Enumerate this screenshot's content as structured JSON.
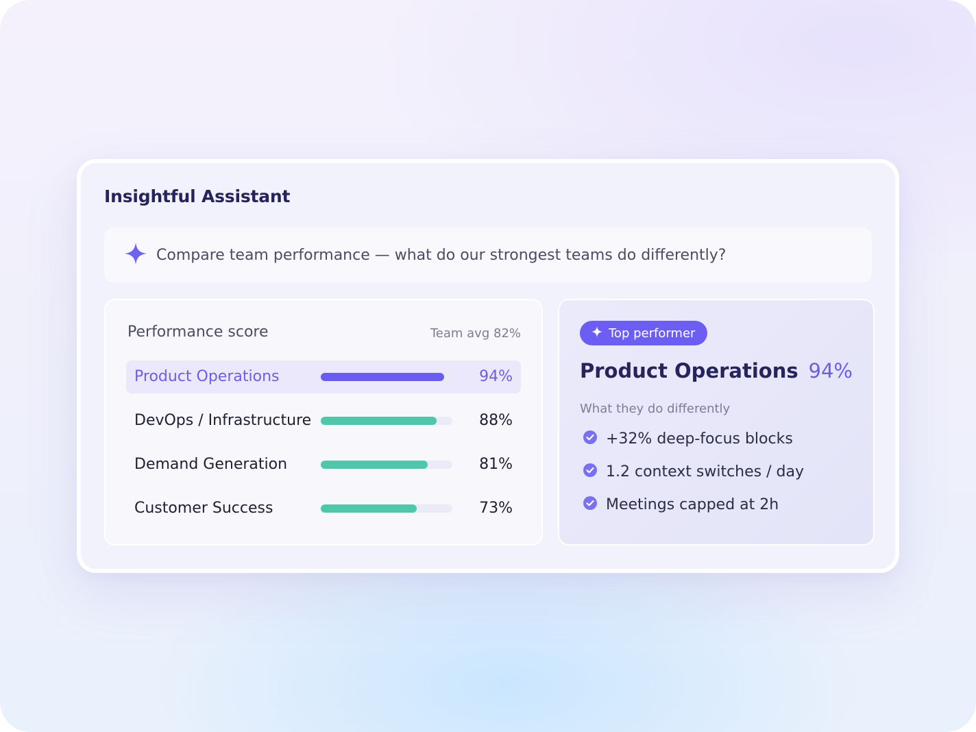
{
  "assistant": {
    "title": "Insightful Assistant"
  },
  "prompt": {
    "icon": "sparkle-icon",
    "text": "Compare team performance — what do our strongest teams do differently?"
  },
  "performance": {
    "title": "Performance score",
    "team_avg": "Team avg 82%",
    "teams": [
      {
        "name": "Product Operations",
        "score": 94,
        "score_label": "94%",
        "highlighted": true
      },
      {
        "name": "DevOps / Infrastructure",
        "score": 88,
        "score_label": "88%",
        "highlighted": false
      },
      {
        "name": "Demand Generation",
        "score": 81,
        "score_label": "81%",
        "highlighted": false
      },
      {
        "name": "Customer Success",
        "score": 73,
        "score_label": "73%",
        "highlighted": false
      }
    ]
  },
  "top_performer": {
    "badge": "Top performer",
    "badge_icon": "sparkle-icon",
    "team": "Product Operations",
    "score_label": "94%",
    "subtitle": "What they do differently",
    "items": [
      "+32% deep-focus blocks",
      "1.2 context switches / day",
      "Meetings capped at 2h"
    ],
    "item_icon": "check-circle-icon"
  },
  "colors": {
    "accent": "#6c5ef2",
    "bar_green": "#4ec7ab",
    "title_text": "#27235b"
  }
}
